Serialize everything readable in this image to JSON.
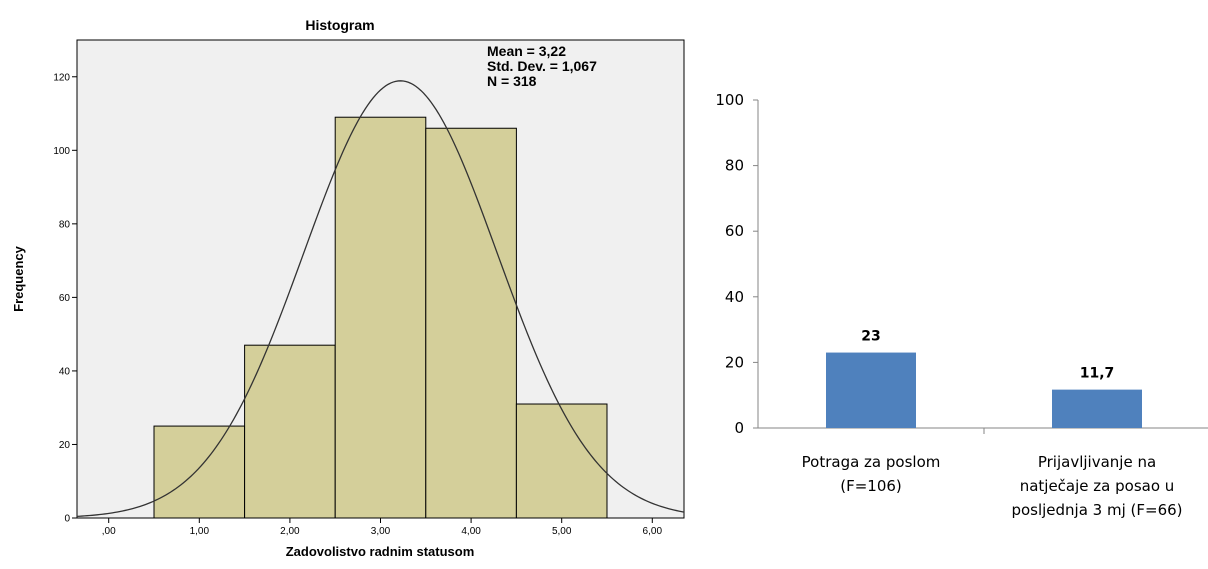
{
  "chart_data": [
    {
      "type": "bar",
      "subtype": "histogram",
      "title": "Histogram",
      "xlabel": "Zadovolistvo radnim statusom",
      "ylabel": "Frequency",
      "xlim": [
        -0.35,
        6.35
      ],
      "ylim": [
        0,
        130
      ],
      "x_ticks": [
        0,
        1,
        2,
        3,
        4,
        5,
        6
      ],
      "x_tick_labels": [
        ",00",
        "1,00",
        "2,00",
        "3,00",
        "4,00",
        "5,00",
        "6,00"
      ],
      "y_ticks": [
        0,
        20,
        40,
        60,
        80,
        100,
        120
      ],
      "y_tick_labels": [
        "0",
        "20",
        "40",
        "60",
        "80",
        "100",
        "120"
      ],
      "bins": [
        {
          "from": 0.5,
          "to": 1.5,
          "count": 25
        },
        {
          "from": 1.5,
          "to": 2.5,
          "count": 47
        },
        {
          "from": 2.5,
          "to": 3.5,
          "count": 109
        },
        {
          "from": 3.5,
          "to": 4.5,
          "count": 106
        },
        {
          "from": 4.5,
          "to": 5.5,
          "count": 31
        }
      ],
      "normal_curve": {
        "mean": 3.22,
        "sd": 1.067,
        "n": 318,
        "bin_width": 1
      },
      "stats_lines": [
        "Mean = 3,22",
        "Std. Dev. = 1,067",
        "N = 318"
      ],
      "colors": {
        "bar": "#d4cf9a",
        "plot_bg": "#f0f0f0",
        "curve": "#333333"
      },
      "grid": false
    },
    {
      "type": "bar",
      "title": "",
      "xlabel": "",
      "ylabel": "",
      "ylim": [
        0,
        100
      ],
      "y_ticks": [
        0,
        20,
        40,
        60,
        80,
        100
      ],
      "categories": [
        [
          "Potraga za poslom",
          "(F=106)"
        ],
        [
          "Prijavljivanje na",
          "natječaje za posao u",
          "posljednja 3 mj (F=66)"
        ]
      ],
      "values": [
        23,
        11.7
      ],
      "data_labels": [
        "23",
        "11,7"
      ],
      "colors": {
        "bar": "#4f81bd"
      },
      "grid": false
    }
  ]
}
